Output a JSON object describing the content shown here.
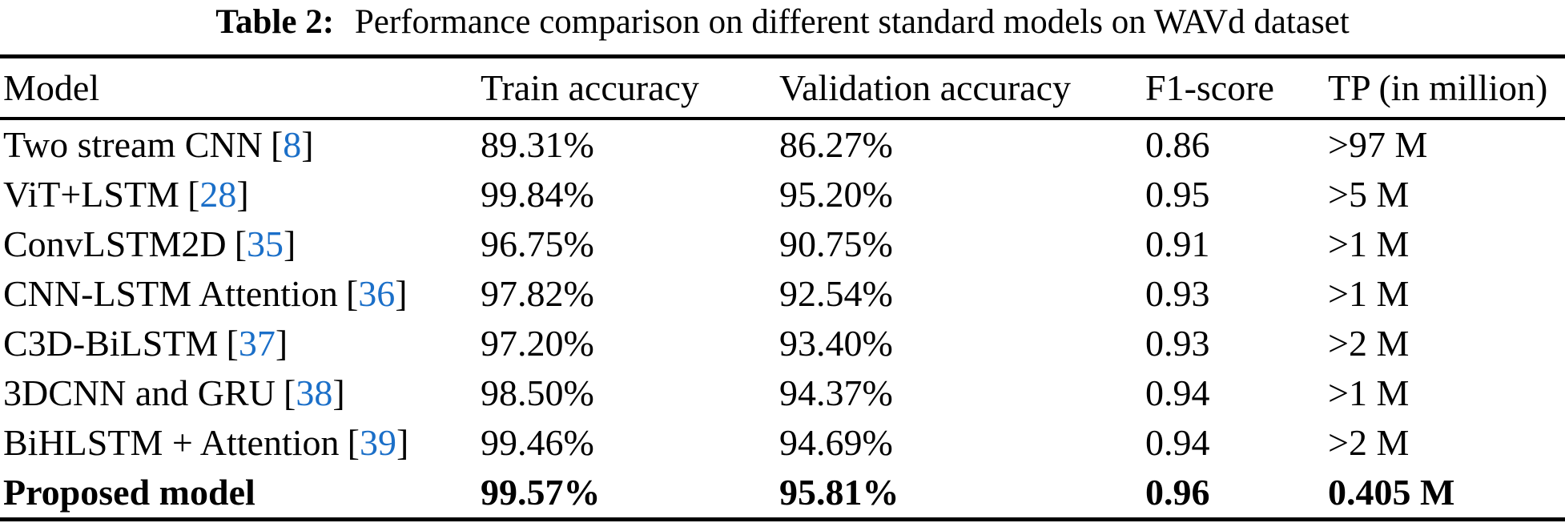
{
  "colors": {
    "background": "#ffffff",
    "text": "#000000",
    "citation_link": "#1b6fc8",
    "rule": "#000000"
  },
  "caption": {
    "label": "Table 2:",
    "text": "Performance comparison on different standard models on WAVd dataset"
  },
  "table": {
    "columns": [
      "Model",
      "Train accuracy",
      "Validation accuracy",
      "F1-score",
      "TP (in million)"
    ],
    "rows": [
      {
        "model": "Two stream CNN",
        "citation": "8",
        "train": "89.31%",
        "val": "86.27%",
        "f1": "0.86",
        "tp": ">97 M",
        "bold": false
      },
      {
        "model": "ViT+LSTM",
        "citation": "28",
        "train": "99.84%",
        "val": "95.20%",
        "f1": "0.95",
        "tp": ">5 M",
        "bold": false
      },
      {
        "model": "ConvLSTM2D",
        "citation": "35",
        "train": "96.75%",
        "val": "90.75%",
        "f1": "0.91",
        "tp": ">1 M",
        "bold": false
      },
      {
        "model": "CNN-LSTM Attention",
        "citation": "36",
        "train": "97.82%",
        "val": "92.54%",
        "f1": "0.93",
        "tp": ">1 M",
        "bold": false
      },
      {
        "model": "C3D-BiLSTM",
        "citation": "37",
        "train": "97.20%",
        "val": "93.40%",
        "f1": "0.93",
        "tp": ">2 M",
        "bold": false
      },
      {
        "model": "3DCNN and GRU",
        "citation": "38",
        "train": "98.50%",
        "val": "94.37%",
        "f1": "0.94",
        "tp": ">1 M",
        "bold": false
      },
      {
        "model": "BiHLSTM + Attention",
        "citation": "39",
        "train": "99.46%",
        "val": "94.69%",
        "f1": "0.94",
        "tp": ">2 M",
        "bold": false
      },
      {
        "model": "Proposed model",
        "citation": null,
        "train": "99.57%",
        "val": "95.81%",
        "f1": "0.96",
        "tp": "0.405 M",
        "bold": true
      }
    ]
  }
}
